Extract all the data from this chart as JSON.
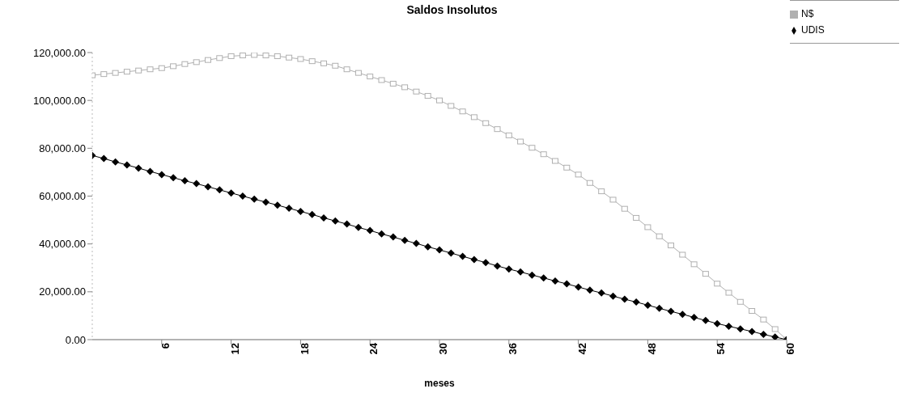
{
  "chart_data": {
    "type": "line",
    "title": "Saldos Insolutos",
    "xlabel": "meses",
    "x": [
      0,
      1,
      2,
      3,
      4,
      5,
      6,
      7,
      8,
      9,
      10,
      11,
      12,
      13,
      14,
      15,
      16,
      17,
      18,
      19,
      20,
      21,
      22,
      23,
      24,
      25,
      26,
      27,
      28,
      29,
      30,
      31,
      32,
      33,
      34,
      35,
      36,
      37,
      38,
      39,
      40,
      41,
      42,
      43,
      44,
      45,
      46,
      47,
      48,
      49,
      50,
      51,
      52,
      53,
      54,
      55,
      56,
      57,
      58,
      59,
      60
    ],
    "series": [
      {
        "name": "N$",
        "color": "#b0b0b0",
        "marker": "square",
        "values": [
          110500,
          111000,
          111500,
          112000,
          112500,
          113000,
          113500,
          114300,
          115200,
          116000,
          116900,
          117700,
          118500,
          118800,
          119000,
          118800,
          118500,
          117900,
          117300,
          116400,
          115500,
          114500,
          113000,
          111500,
          110000,
          108500,
          107000,
          105500,
          103700,
          101900,
          100000,
          97700,
          95400,
          93000,
          90500,
          88000,
          85400,
          82800,
          80200,
          77500,
          74700,
          71900,
          69000,
          65500,
          62000,
          58500,
          54700,
          50900,
          47000,
          43200,
          39400,
          35500,
          31500,
          27500,
          23400,
          19600,
          15800,
          12000,
          8400,
          4400,
          0
        ]
      },
      {
        "name": "UDIS",
        "color": "#000000",
        "marker": "diamond",
        "values": [
          77000,
          75700,
          74300,
          73000,
          71700,
          70300,
          69000,
          67700,
          66400,
          65200,
          63900,
          62600,
          61300,
          60000,
          58700,
          57500,
          56200,
          54900,
          53600,
          52300,
          50900,
          49600,
          48300,
          46900,
          45600,
          44200,
          42900,
          41500,
          40200,
          38800,
          37500,
          36200,
          34800,
          33500,
          32200,
          30800,
          29500,
          28300,
          27000,
          25800,
          24500,
          23300,
          22000,
          20700,
          19500,
          18200,
          16900,
          15700,
          14400,
          13100,
          11800,
          10600,
          9300,
          8000,
          6700,
          5600,
          4500,
          3400,
          2200,
          1100,
          0
        ]
      }
    ],
    "xlim": [
      0,
      60
    ],
    "xticks": [
      6,
      12,
      18,
      24,
      30,
      36,
      42,
      48,
      54,
      60
    ],
    "ylim": [
      0,
      120000
    ],
    "yticks": [
      {
        "value": 0,
        "label": "0.00"
      },
      {
        "value": 20000,
        "label": "20,000.00"
      },
      {
        "value": 40000,
        "label": "40,000.00"
      },
      {
        "value": 60000,
        "label": "60,000.00"
      },
      {
        "value": 80000,
        "label": "80,000.00"
      },
      {
        "value": 100000,
        "label": "100,000.00"
      },
      {
        "value": 120000,
        "label": "120,000.00"
      }
    ],
    "grid": false,
    "legend": "top right"
  }
}
